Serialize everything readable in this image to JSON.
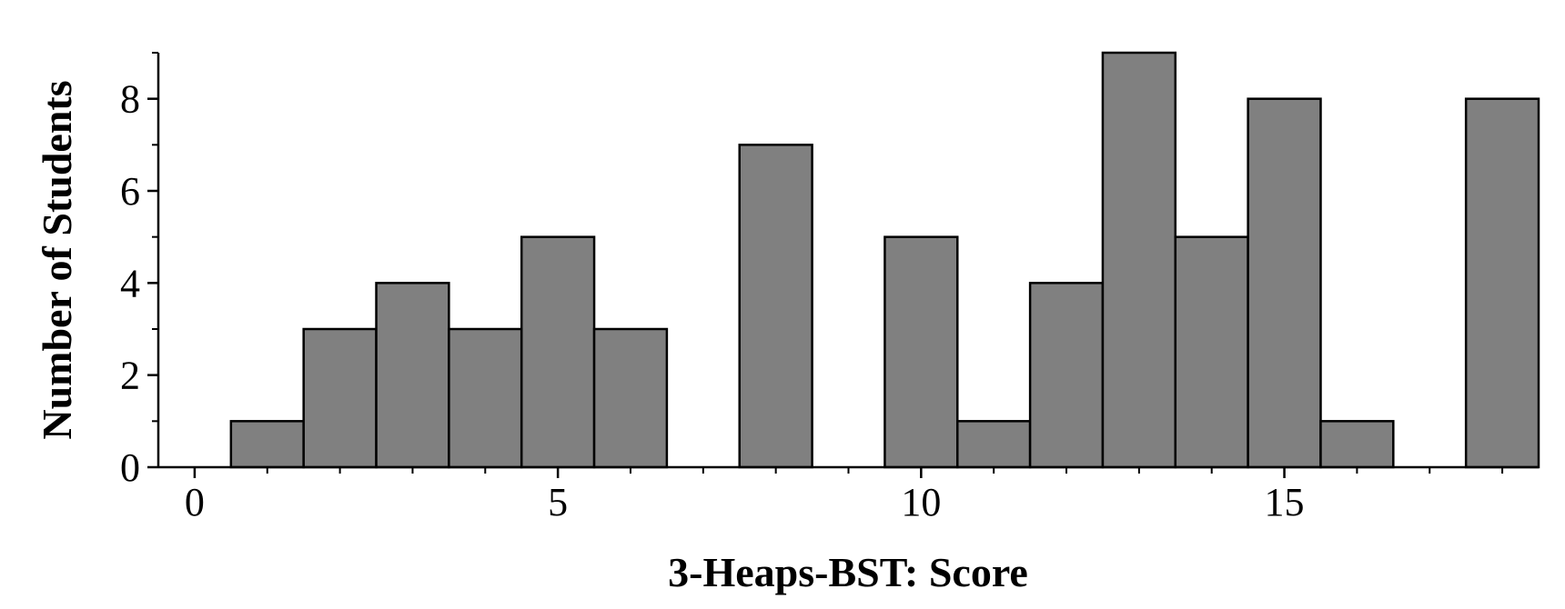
{
  "chart_data": {
    "type": "histogram",
    "xlabel": "3-Heaps-BST: Score",
    "ylabel": "Number of Students",
    "bins": [
      -0.5,
      0.5,
      1.5,
      2.5,
      3.5,
      4.5,
      5.5,
      6.5,
      7.5,
      8.5,
      9.5,
      10.5,
      11.5,
      12.5,
      13.5,
      14.5,
      15.5,
      16.5,
      17.5,
      18.5
    ],
    "values": [
      0,
      1,
      3,
      4,
      3,
      5,
      3,
      0,
      7,
      0,
      5,
      1,
      4,
      9,
      5,
      8,
      1,
      0,
      8
    ],
    "color": "#808080",
    "xlim": [
      -0.5,
      18.5
    ],
    "ylim": [
      0,
      9
    ],
    "xticks": [
      0,
      5,
      10,
      15
    ],
    "yticks": [
      0,
      2,
      4,
      6,
      8
    ],
    "xminorticks": [
      1,
      2,
      3,
      4,
      6,
      7,
      8,
      9,
      11,
      12,
      13,
      14,
      16,
      17,
      18
    ],
    "yminorticks": [
      1,
      3,
      5,
      7,
      9
    ]
  }
}
